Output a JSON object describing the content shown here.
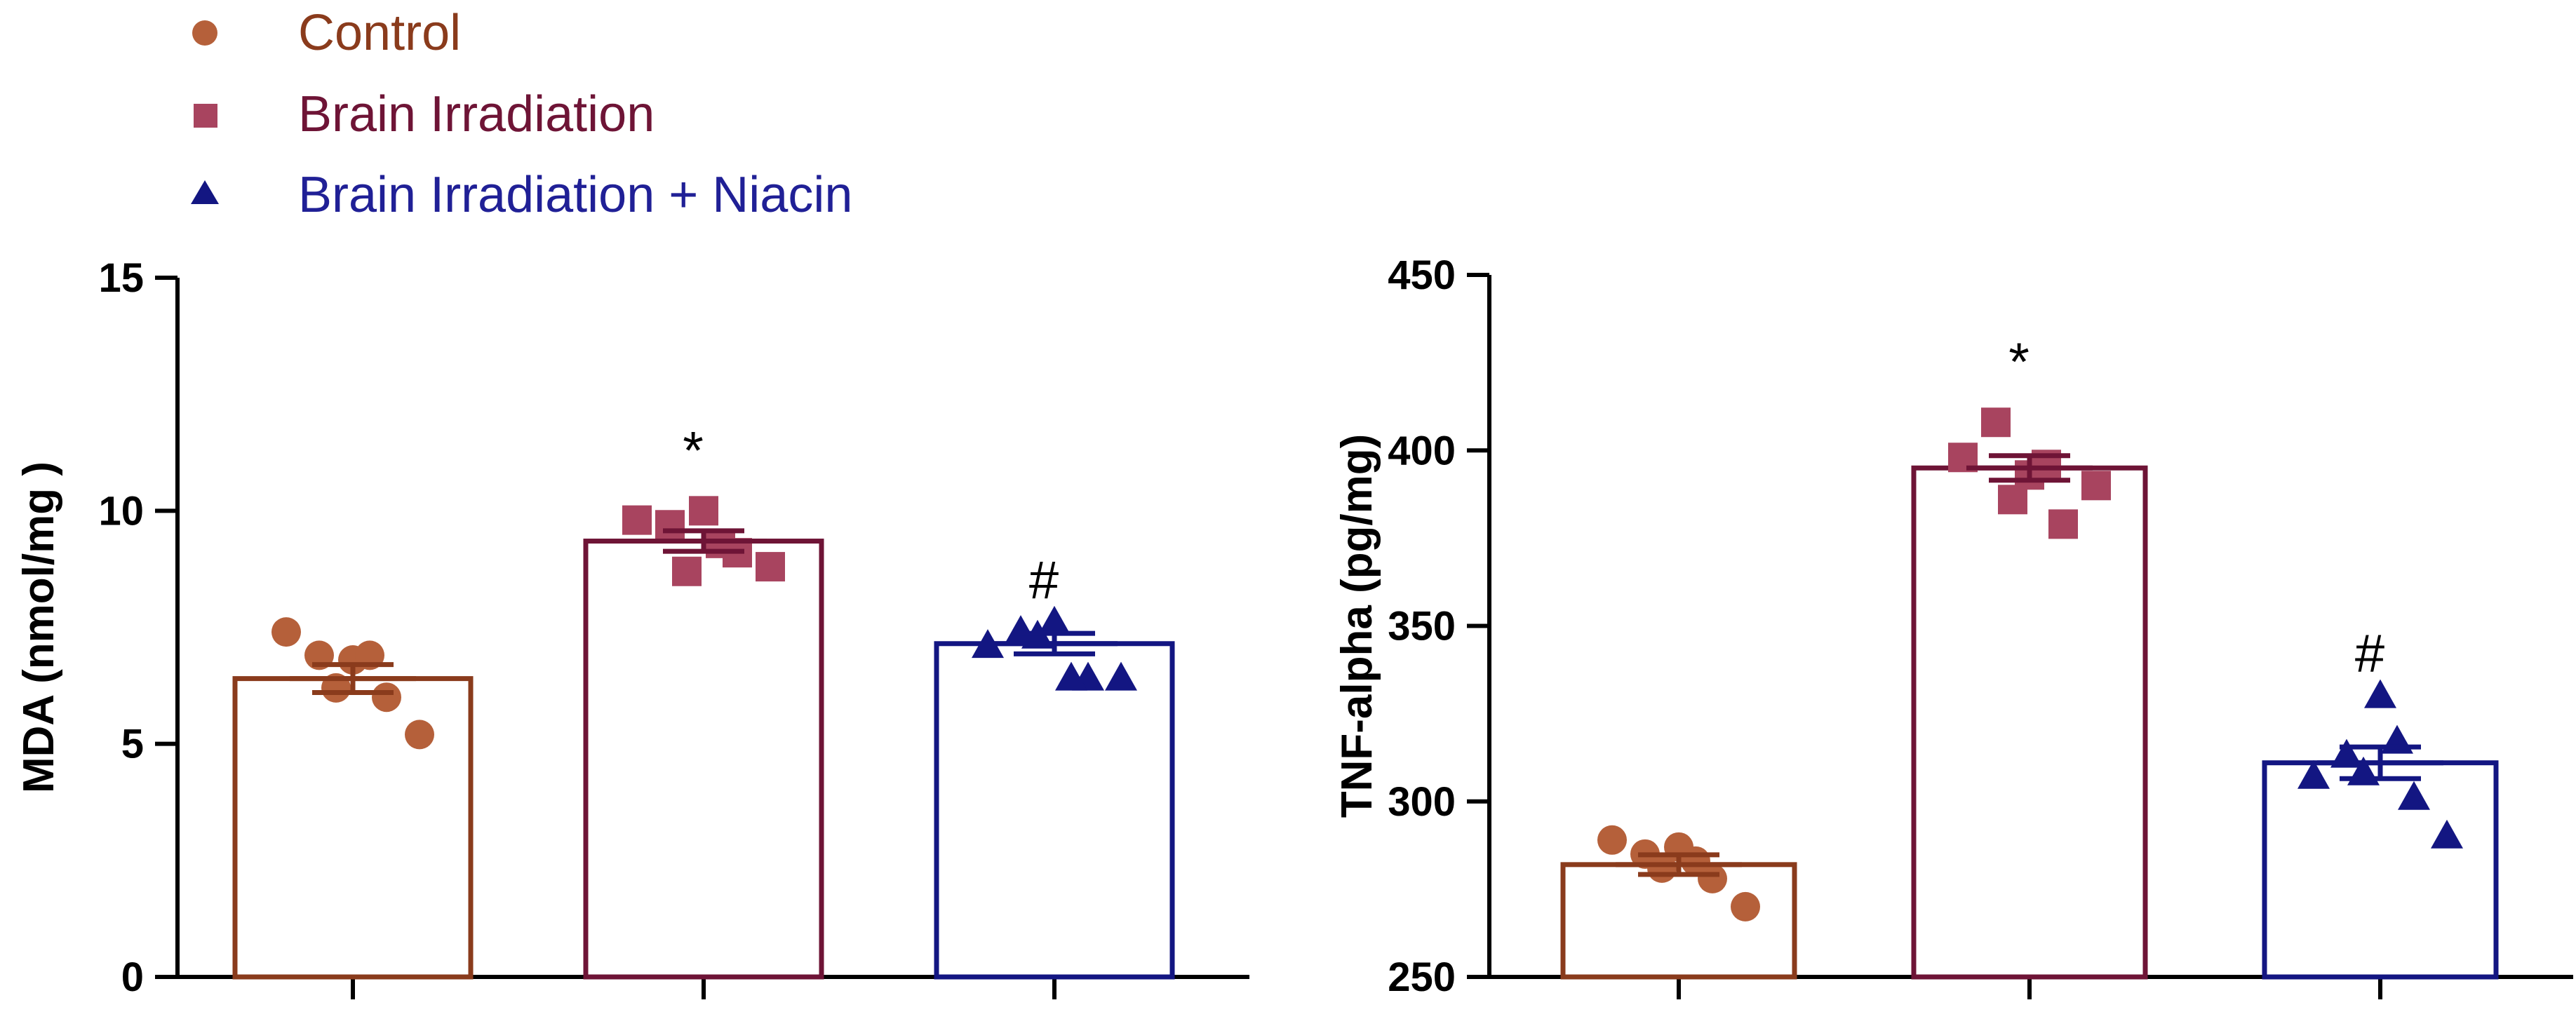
{
  "legend": [
    {
      "label": "Control",
      "marker": "circle",
      "color": "#b5603a",
      "text_color": "#8a3b1c"
    },
    {
      "label": "Brain Irradiation",
      "marker": "square",
      "color": "#a8445f",
      "text_color": "#6e1436"
    },
    {
      "label": "Brain Irradiation + Niacin",
      "marker": "triangle",
      "color": "#131682",
      "text_color": "#202096"
    }
  ],
  "colors": {
    "control_bar": "#8a3b1c",
    "irradiation_bar": "#6e1436",
    "niacin_bar": "#131682",
    "control_marker": "#b5603a",
    "irradiation_marker": "#a8445f",
    "niacin_marker": "#131682"
  },
  "chart_data": [
    {
      "type": "bar",
      "ylabel": "MDA  (nmol/mg )",
      "ylim": [
        0,
        15
      ],
      "yticks": [
        "0",
        "5",
        "10",
        "15"
      ],
      "categories": [
        "Control",
        "Brain Irradiation",
        "Brain Irradiation + Niacin"
      ],
      "values": [
        6.4,
        9.35,
        7.15
      ],
      "sem": [
        0.3,
        0.22,
        0.22
      ],
      "annotations": [
        "",
        "*",
        "#"
      ],
      "points": [
        [
          7.4,
          6.9,
          6.8,
          6.0,
          5.2,
          6.2,
          6.9
        ],
        [
          9.8,
          9.7,
          10.0,
          9.1,
          8.8,
          8.7,
          9.3
        ],
        [
          7.1,
          7.4,
          7.6,
          6.4,
          6.4,
          7.3,
          6.4
        ]
      ]
    },
    {
      "type": "bar",
      "ylabel": "TNF-alpha (pg/mg)",
      "ylim": [
        250,
        450
      ],
      "yticks": [
        "250",
        "300",
        "350",
        "400",
        "450"
      ],
      "categories": [
        "Control",
        "Brain Irradiation",
        "Brain Irradiation + Niacin"
      ],
      "values": [
        282,
        395,
        311
      ],
      "sem": [
        2.8,
        3.5,
        4.5
      ],
      "annotations": [
        "",
        "*",
        "#"
      ],
      "points": [
        [
          289,
          285,
          287,
          278,
          270,
          281,
          283
        ],
        [
          398,
          408,
          393,
          379,
          390,
          386,
          396
        ],
        [
          307,
          313,
          330,
          301,
          290,
          308,
          317
        ]
      ]
    }
  ]
}
